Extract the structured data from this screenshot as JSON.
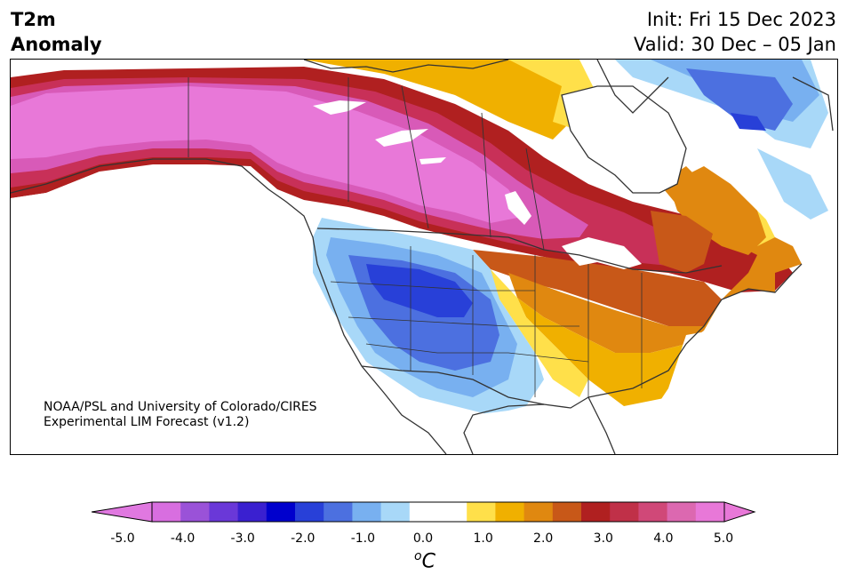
{
  "header": {
    "title_line1": "T2m",
    "title_line2": "Anomaly",
    "init": "Init: Fri 15 Dec 2023",
    "valid": "Valid: 30 Dec – 05 Jan"
  },
  "credit": {
    "line1": "NOAA/PSL and University of Colorado/CIRES",
    "line2": "Experimental LIM Forecast (v1.2)"
  },
  "colorbar": {
    "unit_base": "C",
    "unit_sup": "o",
    "ticks": [
      "-5.0",
      "-4.0",
      "-3.0",
      "-2.0",
      "-1.0",
      "0.0",
      "1.0",
      "2.0",
      "3.0",
      "4.0",
      "5.0"
    ],
    "colors": [
      "#d86ee0",
      "#9a52d8",
      "#6a38d8",
      "#3a20d0",
      "#0000cd",
      "#2840d8",
      "#4c70e0",
      "#78b0f0",
      "#a8d8f8",
      "#ffffff",
      "#ffffff",
      "#ffe04a",
      "#f0b000",
      "#e08810",
      "#c85818",
      "#b02020",
      "#c03048",
      "#d04878",
      "#dc68b0",
      "#e878d8"
    ],
    "under_color": "#e078e0",
    "over_color": "#e878d8"
  },
  "map": {
    "colors": {
      "pink": "#e878d8",
      "pink_dark": "#d85ab8",
      "magenta_red": "#c83058",
      "dark_red": "#b02020",
      "red_orange": "#c85818",
      "orange": "#e08810",
      "gold": "#f0b000",
      "yellow": "#ffe04a",
      "light_blue": "#a8d8f8",
      "mid_blue": "#78b0f0",
      "blue": "#4c70e0",
      "royal_blue": "#2840d8",
      "deep_blue": "#0000cd",
      "coast": "#333333"
    }
  }
}
